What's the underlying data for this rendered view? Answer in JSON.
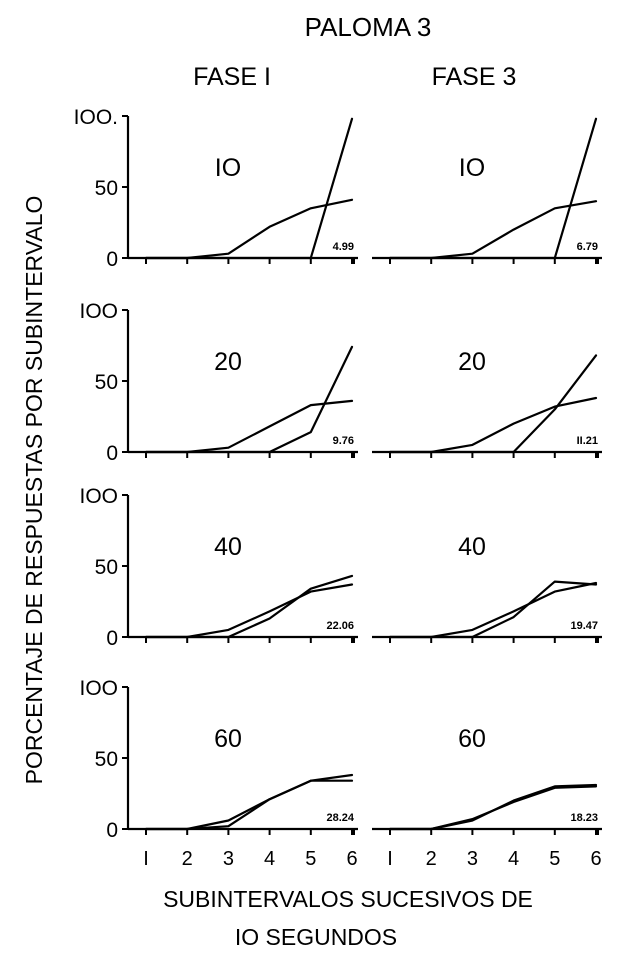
{
  "chart_data": {
    "type": "line",
    "title": "PALOMA 3",
    "columns": [
      "FASE I",
      "FASE 3"
    ],
    "ylabel": "PORCENTAJE DE RESPUESTAS POR SUBINTERVALO",
    "xlabel_line1": "SUBINTERVALOS SUCESIVOS DE",
    "xlabel_line2": "IO SEGUNDOS",
    "x_ticks": [
      "I",
      "2",
      "3",
      "4",
      "5",
      "6"
    ],
    "y_ticks": [
      "0",
      "50",
      "IOO"
    ],
    "y_ticks_top": [
      "0",
      "50",
      "IOO."
    ],
    "x": [
      1,
      2,
      3,
      4,
      5,
      6
    ],
    "ylim": [
      0,
      100
    ],
    "grid": false,
    "panels": [
      {
        "row": 0,
        "col": 0,
        "label": "IO",
        "corner_value": "4.99",
        "series": [
          {
            "values": [
              0,
              0,
              3,
              22,
              35,
              41
            ]
          },
          {
            "values": [
              0,
              0,
              0,
              0,
              0,
              98
            ]
          }
        ]
      },
      {
        "row": 0,
        "col": 1,
        "label": "IO",
        "corner_value": "6.79",
        "series": [
          {
            "values": [
              0,
              0,
              3,
              20,
              35,
              40
            ]
          },
          {
            "values": [
              0,
              0,
              0,
              0,
              0,
              98
            ]
          }
        ]
      },
      {
        "row": 1,
        "col": 0,
        "label": "20",
        "corner_value": "9.76",
        "series": [
          {
            "values": [
              0,
              0,
              3,
              18,
              33,
              36
            ]
          },
          {
            "values": [
              0,
              0,
              0,
              0,
              14,
              74
            ]
          }
        ]
      },
      {
        "row": 1,
        "col": 1,
        "label": "20",
        "corner_value": "II.21",
        "series": [
          {
            "values": [
              0,
              0,
              5,
              20,
              32,
              38
            ]
          },
          {
            "values": [
              0,
              0,
              0,
              0,
              30,
              68
            ]
          }
        ]
      },
      {
        "row": 2,
        "col": 0,
        "label": "40",
        "corner_value": "22.06",
        "series": [
          {
            "values": [
              0,
              0,
              5,
              18,
              32,
              37
            ]
          },
          {
            "values": [
              0,
              0,
              0,
              13,
              34,
              43
            ]
          }
        ]
      },
      {
        "row": 2,
        "col": 1,
        "label": "40",
        "corner_value": "19.47",
        "series": [
          {
            "values": [
              0,
              0,
              5,
              18,
              32,
              38
            ]
          },
          {
            "values": [
              0,
              0,
              0,
              14,
              39,
              37
            ]
          }
        ]
      },
      {
        "row": 3,
        "col": 0,
        "label": "60",
        "corner_value": "28.24",
        "series": [
          {
            "values": [
              0,
              0,
              6,
              21,
              34,
              38
            ]
          },
          {
            "values": [
              0,
              0,
              2,
              21,
              34,
              34
            ]
          }
        ]
      },
      {
        "row": 3,
        "col": 1,
        "label": "60",
        "corner_value": "18.23",
        "series": [
          {
            "values": [
              0,
              0,
              6,
              20,
              30,
              31
            ]
          },
          {
            "values": [
              0,
              0,
              7,
              19,
              29,
              30
            ]
          }
        ]
      }
    ]
  }
}
